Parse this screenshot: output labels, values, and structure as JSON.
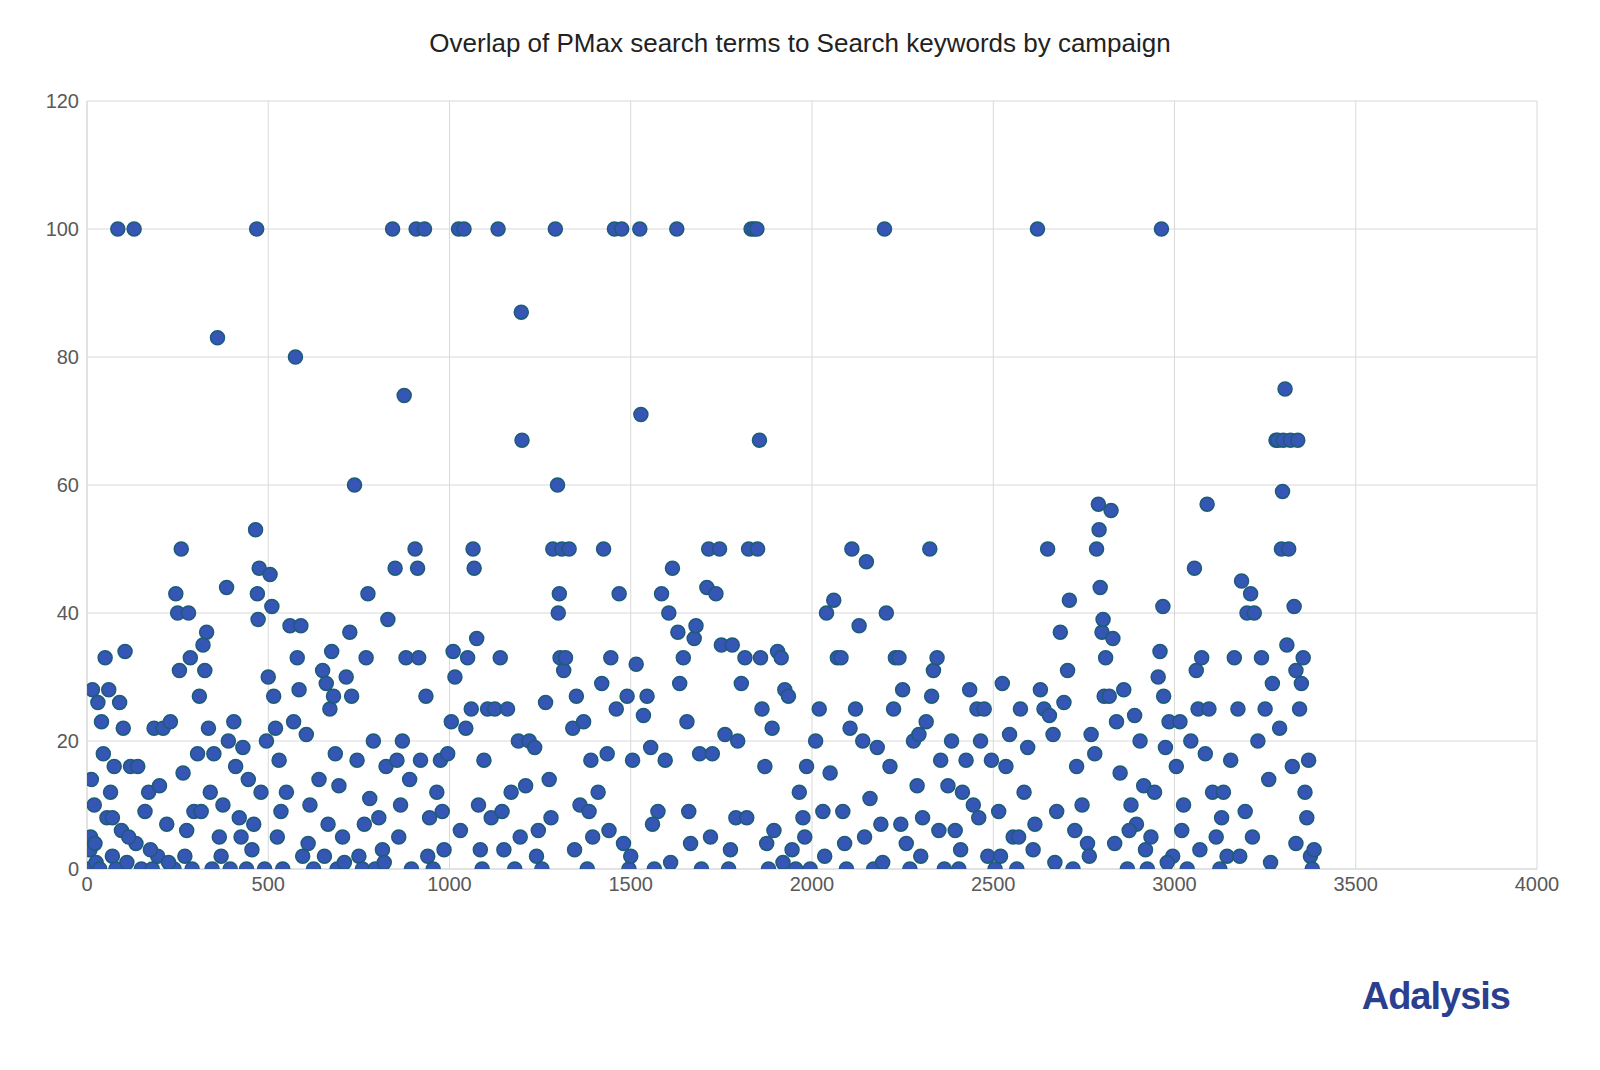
{
  "chart_data": {
    "type": "scatter",
    "title": "Overlap of PMax search terms to Search keywords by campaign",
    "annotations": [
      "Adalysis"
    ],
    "x": [
      5,
      8,
      10,
      12,
      15,
      20,
      25,
      30,
      35,
      40,
      45,
      50,
      55,
      60,
      65,
      70,
      75,
      80,
      85,
      90,
      95,
      100,
      105,
      110,
      120,
      130,
      135,
      140,
      150,
      160,
      170,
      180,
      185,
      195,
      200,
      210,
      220,
      230,
      240,
      245,
      250,
      255,
      260,
      265,
      270,
      280,
      285,
      290,
      295,
      305,
      310,
      320,
      325,
      330,
      335,
      340,
      345,
      350,
      360,
      365,
      375,
      385,
      390,
      395,
      405,
      410,
      420,
      430,
      440,
      445,
      455,
      465,
      468,
      470,
      472,
      475,
      480,
      490,
      495,
      500,
      505,
      510,
      515,
      520,
      525,
      530,
      540,
      550,
      560,
      570,
      575,
      580,
      585,
      590,
      595,
      605,
      615,
      625,
      640,
      650,
      660,
      665,
      670,
      675,
      680,
      685,
      690,
      695,
      705,
      715,
      725,
      730,
      738,
      745,
      750,
      760,
      770,
      775,
      780,
      790,
      795,
      805,
      815,
      825,
      830,
      843,
      850,
      855,
      865,
      870,
      875,
      880,
      890,
      895,
      905,
      908,
      912,
      915,
      920,
      931,
      935,
      945,
      955,
      965,
      975,
      985,
      995,
      1005,
      1010,
      1015,
      1025,
      1040,
      1045,
      1050,
      1060,
      1065,
      1068,
      1075,
      1080,
      1090,
      1095,
      1105,
      1115,
      1125,
      1134,
      1140,
      1150,
      1160,
      1170,
      1180,
      1190,
      1198,
      1200,
      1210,
      1220,
      1235,
      1245,
      1255,
      1265,
      1275,
      1285,
      1292,
      1298,
      1300,
      1303,
      1305,
      1310,
      1315,
      1320,
      1330,
      1340,
      1350,
      1360,
      1370,
      1380,
      1390,
      1395,
      1410,
      1420,
      1425,
      1435,
      1445,
      1455,
      1460,
      1468,
      1475,
      1480,
      1490,
      1495,
      1505,
      1515,
      1525,
      1528,
      1535,
      1545,
      1555,
      1565,
      1575,
      1585,
      1595,
      1605,
      1615,
      1627,
      1630,
      1635,
      1645,
      1655,
      1665,
      1675,
      1680,
      1690,
      1695,
      1710,
      1715,
      1725,
      1735,
      1745,
      1750,
      1760,
      1770,
      1780,
      1790,
      1795,
      1805,
      1815,
      1825,
      1832,
      1840,
      1848,
      1850,
      1855,
      1858,
      1862,
      1870,
      1880,
      1890,
      1895,
      1905,
      1915,
      1925,
      1935,
      1945,
      1955,
      1965,
      1975,
      1985,
      1995,
      2010,
      2020,
      2030,
      2040,
      2050,
      2060,
      2070,
      2080,
      2090,
      2095,
      2105,
      2110,
      2120,
      2130,
      2140,
      2150,
      2160,
      2170,
      2180,
      2190,
      2200,
      2205,
      2215,
      2225,
      2230,
      2240,
      2250,
      2260,
      2270,
      2280,
      2290,
      2295,
      2305,
      2315,
      2325,
      2330,
      2335,
      2345,
      2355,
      2365,
      2375,
      2385,
      2395,
      2405,
      2415,
      2425,
      2435,
      2445,
      2455,
      2465,
      2475,
      2485,
      2495,
      2505,
      2515,
      2525,
      2535,
      2545,
      2555,
      2565,
      2575,
      2585,
      2595,
      2610,
      2622,
      2630,
      2640,
      2650,
      2655,
      2665,
      2675,
      2685,
      2695,
      2705,
      2710,
      2720,
      2730,
      2745,
      2760,
      2770,
      2780,
      2785,
      2790,
      2792,
      2795,
      2800,
      2803,
      2806,
      2810,
      2820,
      2825,
      2830,
      2840,
      2850,
      2860,
      2870,
      2880,
      2890,
      2895,
      2905,
      2915,
      2925,
      2935,
      2945,
      2955,
      2960,
      2964,
      2968,
      2970,
      2975,
      2985,
      2995,
      3005,
      3015,
      3025,
      3035,
      3045,
      3055,
      3060,
      3065,
      3075,
      3085,
      3090,
      3095,
      3105,
      3115,
      3125,
      3135,
      3145,
      3155,
      3165,
      3175,
      3185,
      3195,
      3200,
      3210,
      3220,
      3230,
      3240,
      3250,
      3260,
      3270,
      3280,
      3285,
      3290,
      3295,
      3298,
      3300,
      3305,
      3310,
      3315,
      3320,
      3325,
      3330,
      3335,
      3340,
      3345,
      3350,
      3355,
      3360,
      3365,
      3370,
      3375,
      3380,
      3385,
      22,
      70,
      115,
      175,
      225,
      275,
      315,
      370,
      425,
      460,
      535,
      610,
      655,
      710,
      765,
      820,
      860,
      940,
      980,
      1030,
      1085,
      1145,
      1195,
      1240,
      1280,
      1345,
      1385,
      1440,
      1500,
      1560,
      1610,
      1660,
      1720,
      1775,
      1820,
      1875,
      1920,
      1980,
      2035,
      2085,
      2145,
      2195,
      2245,
      2300,
      2350,
      2410,
      2460,
      2520,
      2570,
      2615,
      2670,
      2725,
      2765,
      2835,
      2875,
      2920,
      2980,
      3020,
      3070,
      3130,
      3180,
      3215,
      3265,
      3335
    ],
    "values": [
      0,
      3,
      5,
      14,
      28,
      10,
      1,
      26,
      0,
      23,
      18,
      33,
      8,
      28,
      12,
      2,
      16,
      0,
      100,
      26,
      6,
      22,
      34,
      1,
      16,
      100,
      4,
      16,
      0,
      9,
      12,
      0,
      22,
      2,
      13,
      22,
      7,
      23,
      0,
      43,
      40,
      31,
      50,
      15,
      2,
      40,
      33,
      0,
      9,
      18,
      27,
      35,
      31,
      37,
      22,
      12,
      0,
      18,
      83,
      5,
      10,
      44,
      20,
      0,
      23,
      16,
      8,
      19,
      0,
      14,
      3,
      53,
      100,
      43,
      39,
      47,
      12,
      0,
      20,
      30,
      46,
      41,
      27,
      22,
      5,
      17,
      0,
      12,
      38,
      23,
      80,
      33,
      28,
      38,
      2,
      21,
      10,
      0,
      14,
      31,
      29,
      7,
      25,
      34,
      27,
      18,
      0,
      13,
      5,
      30,
      37,
      27,
      60,
      17,
      2,
      0,
      33,
      43,
      11,
      20,
      0,
      8,
      3,
      16,
      39,
      100,
      47,
      17,
      10,
      20,
      74,
      33,
      14,
      0,
      50,
      100,
      47,
      33,
      17,
      100,
      27,
      8,
      0,
      12,
      17,
      3,
      18,
      23,
      34,
      30,
      100,
      100,
      22,
      33,
      25,
      50,
      47,
      36,
      10,
      0,
      17,
      25,
      8,
      25,
      100,
      33,
      3,
      25,
      12,
      0,
      20,
      87,
      67,
      13,
      20,
      19,
      6,
      0,
      26,
      14,
      50,
      100,
      60,
      40,
      43,
      33,
      50,
      31,
      33,
      50,
      22,
      27,
      10,
      23,
      0,
      17,
      5,
      12,
      29,
      50,
      18,
      33,
      100,
      25,
      43,
      100,
      4,
      27,
      0,
      17,
      32,
      100,
      71,
      24,
      27,
      19,
      0,
      9,
      43,
      17,
      40,
      47,
      100,
      37,
      29,
      33,
      23,
      4,
      36,
      38,
      18,
      0,
      44,
      50,
      18,
      43,
      50,
      35,
      21,
      0,
      35,
      8,
      20,
      29,
      33,
      50,
      100,
      100,
      100,
      50,
      67,
      33,
      25,
      16,
      0,
      22,
      6,
      34,
      33,
      28,
      27,
      3,
      0,
      12,
      8,
      16,
      0,
      20,
      25,
      9,
      40,
      15,
      42,
      33,
      33,
      4,
      0,
      22,
      50,
      25,
      38,
      20,
      48,
      11,
      0,
      19,
      7,
      100,
      40,
      16,
      25,
      33,
      33,
      28,
      4,
      0,
      20,
      13,
      21,
      8,
      23,
      50,
      27,
      31,
      33,
      17,
      0,
      13,
      20,
      6,
      0,
      12,
      17,
      28,
      10,
      25,
      20,
      25,
      2,
      17,
      0,
      9,
      29,
      16,
      21,
      5,
      0,
      25,
      12,
      19,
      3,
      100,
      28,
      25,
      50,
      24,
      21,
      9,
      37,
      26,
      31,
      42,
      0,
      16,
      10,
      4,
      21,
      18,
      50,
      57,
      53,
      44,
      37,
      39,
      27,
      33,
      27,
      56,
      36,
      23,
      15,
      28,
      0,
      10,
      24,
      7,
      20,
      13,
      0,
      5,
      12,
      30,
      34,
      100,
      41,
      27,
      19,
      23,
      2,
      16,
      23,
      10,
      0,
      20,
      47,
      31,
      25,
      33,
      18,
      57,
      25,
      12,
      5,
      0,
      12,
      2,
      17,
      33,
      25,
      45,
      9,
      40,
      43,
      40,
      20,
      33,
      25,
      14,
      29,
      67,
      67,
      22,
      50,
      59,
      67,
      75,
      35,
      50,
      67,
      16,
      41,
      31,
      67,
      25,
      29,
      33,
      12,
      8,
      17,
      2,
      0,
      3,
      4,
      8,
      5,
      3,
      1,
      6,
      9,
      2,
      5,
      7,
      9,
      4,
      2,
      1,
      7,
      1,
      5,
      2,
      9,
      6,
      3,
      9,
      5,
      2,
      8,
      3,
      9,
      6,
      2,
      7,
      1,
      9,
      5,
      3,
      8,
      4,
      1,
      5,
      2,
      9,
      5,
      1,
      7,
      2,
      6,
      3,
      8,
      2,
      5,
      7,
      1,
      6,
      2,
      4,
      6,
      3,
      1,
      6,
      3,
      8,
      2,
      5,
      1,
      4
    ],
    "color": "#3556b4",
    "marker": "circle",
    "xlim": [
      0,
      4000
    ],
    "xticks": [
      0,
      500,
      1000,
      1500,
      2000,
      2500,
      3000,
      3500,
      4000
    ],
    "ylim": [
      0,
      120
    ],
    "yticks": [
      0,
      20,
      40,
      60,
      80,
      100,
      120
    ],
    "grid": true
  }
}
